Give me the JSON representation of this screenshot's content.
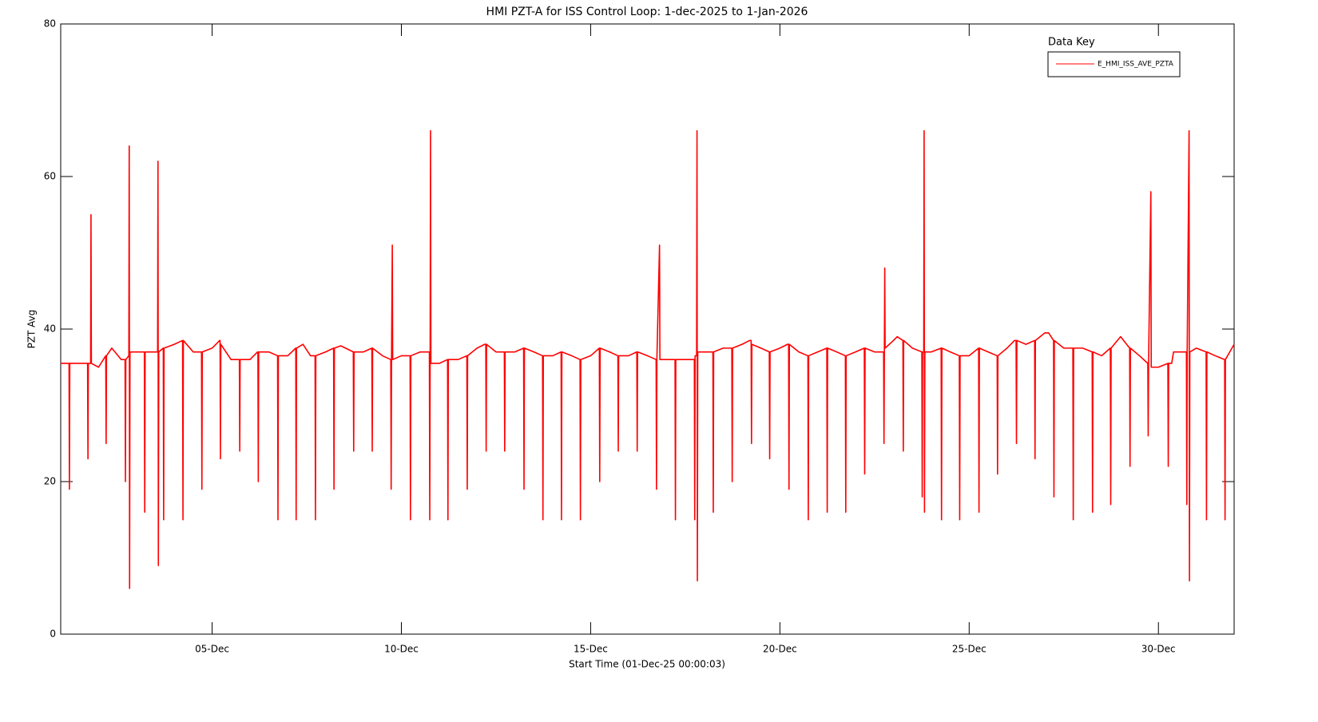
{
  "chart_data": {
    "type": "line",
    "title": "HMI PZT-A for ISS Control Loop: 1-dec-2025 to 1-Jan-2026",
    "xlabel": "Start Time (01-Dec-25 00:00:03)",
    "ylabel": "PZT Avg",
    "legend_title": "Data Key",
    "legend": "top-right",
    "grid": false,
    "xlim": [
      1,
      32
    ],
    "ylim": [
      0,
      80
    ],
    "xticks": [
      {
        "value": 5,
        "label": "05-Dec"
      },
      {
        "value": 10,
        "label": "10-Dec"
      },
      {
        "value": 15,
        "label": "15-Dec"
      },
      {
        "value": 20,
        "label": "20-Dec"
      },
      {
        "value": 25,
        "label": "25-Dec"
      },
      {
        "value": 30,
        "label": "30-Dec"
      }
    ],
    "yticks": [
      0,
      20,
      40,
      60,
      80
    ],
    "series": [
      {
        "name": "E_HMI_ISS_AVE_PZTA",
        "color": "#ff0000",
        "x": [
          1.0,
          1.22,
          1.23,
          1.24,
          1.5,
          1.71,
          1.72,
          1.73,
          1.79,
          1.8,
          1.81,
          2.0,
          2.19,
          2.2,
          2.21,
          2.35,
          2.6,
          2.7,
          2.71,
          2.72,
          2.8,
          2.81,
          2.82,
          2.83,
          3.0,
          3.21,
          3.22,
          3.23,
          3.5,
          3.56,
          3.57,
          3.58,
          3.59,
          3.71,
          3.72,
          3.73,
          4.0,
          4.22,
          4.23,
          4.24,
          4.5,
          4.72,
          4.73,
          4.74,
          5.0,
          5.2,
          5.21,
          5.22,
          5.23,
          5.5,
          5.72,
          5.73,
          5.74,
          6.0,
          6.2,
          6.21,
          6.22,
          6.23,
          6.5,
          6.73,
          6.74,
          6.75,
          7.0,
          7.21,
          7.22,
          7.23,
          7.4,
          7.6,
          7.72,
          7.73,
          7.74,
          8.0,
          8.21,
          8.22,
          8.23,
          8.4,
          8.73,
          8.74,
          8.75,
          9.0,
          9.22,
          9.23,
          9.24,
          9.5,
          9.72,
          9.73,
          9.74,
          9.76,
          9.77,
          10.0,
          10.23,
          10.24,
          10.25,
          10.5,
          10.74,
          10.75,
          10.76,
          10.77,
          10.78,
          11.0,
          11.22,
          11.23,
          11.24,
          11.5,
          11.73,
          11.74,
          11.75,
          12.0,
          12.2,
          12.23,
          12.24,
          12.25,
          12.5,
          12.72,
          12.73,
          12.74,
          13.0,
          13.23,
          13.24,
          13.25,
          13.5,
          13.73,
          13.74,
          13.75,
          14.0,
          14.22,
          14.23,
          14.24,
          14.5,
          14.72,
          14.73,
          14.74,
          15.0,
          15.23,
          15.24,
          15.25,
          15.5,
          15.72,
          15.73,
          15.74,
          16.0,
          16.22,
          16.23,
          16.24,
          16.5,
          16.73,
          16.74,
          16.75,
          16.82,
          16.83,
          17.0,
          17.23,
          17.24,
          17.25,
          17.5,
          17.74,
          17.75,
          17.76,
          17.8,
          17.81,
          17.82,
          17.83,
          18.0,
          18.23,
          18.24,
          18.25,
          18.5,
          18.73,
          18.74,
          18.75,
          19.0,
          19.2,
          19.24,
          19.25,
          19.26,
          19.5,
          19.72,
          19.73,
          19.74,
          20.0,
          20.2,
          20.23,
          20.24,
          20.25,
          20.5,
          20.74,
          20.75,
          20.76,
          21.0,
          21.24,
          21.25,
          21.26,
          21.5,
          21.73,
          21.74,
          21.75,
          22.0,
          22.23,
          22.24,
          22.25,
          22.5,
          22.74,
          22.75,
          22.76,
          22.77,
          22.78,
          23.0,
          23.1,
          23.25,
          23.26,
          23.27,
          23.5,
          23.75,
          23.76,
          23.77,
          23.8,
          23.81,
          23.82,
          23.83,
          24.0,
          24.26,
          24.27,
          24.28,
          24.5,
          24.74,
          24.75,
          24.76,
          25.0,
          25.25,
          25.26,
          25.27,
          25.5,
          25.74,
          25.75,
          25.76,
          26.0,
          26.2,
          26.24,
          26.25,
          26.26,
          26.5,
          26.73,
          26.74,
          26.75,
          27.0,
          27.1,
          27.23,
          27.24,
          27.25,
          27.5,
          27.74,
          27.75,
          27.76,
          28.0,
          28.25,
          28.26,
          28.27,
          28.5,
          28.73,
          28.74,
          28.75,
          29.0,
          29.24,
          29.25,
          29.26,
          29.5,
          29.72,
          29.73,
          29.74,
          29.8,
          29.81,
          30.0,
          30.25,
          30.26,
          30.27,
          30.35,
          30.4,
          30.6,
          30.74,
          30.75,
          30.76,
          30.81,
          30.82,
          30.83,
          31.0,
          31.26,
          31.27,
          31.28,
          31.5,
          31.75,
          31.76,
          31.77,
          32.0
        ],
        "values": [
          35.5,
          35.5,
          19,
          35.5,
          35.5,
          35.5,
          23,
          35.5,
          35.5,
          55,
          35.5,
          35,
          36.5,
          25,
          36.5,
          37.5,
          36,
          36,
          20,
          36,
          36.5,
          64,
          6,
          37,
          37,
          37,
          16,
          37,
          37,
          37,
          62,
          9,
          37,
          37.5,
          15,
          37.5,
          38,
          38.5,
          15,
          38.5,
          37,
          37,
          19,
          37,
          37.5,
          38.5,
          38.5,
          23,
          38,
          36,
          36,
          24,
          36,
          36,
          37,
          37,
          20,
          37,
          37,
          36.5,
          15,
          36.5,
          36.5,
          37.5,
          15,
          37.5,
          38,
          36.5,
          36.5,
          15,
          36.5,
          37,
          37.5,
          19,
          37.5,
          37.8,
          37,
          24,
          37,
          37,
          37.5,
          24,
          37.5,
          36.5,
          36,
          19,
          36,
          51,
          36,
          36.5,
          36.5,
          15,
          36.5,
          37,
          37,
          15,
          37,
          66,
          35.5,
          35.5,
          36,
          15,
          36,
          36,
          36.5,
          19,
          36.5,
          37.5,
          38,
          38,
          24,
          38,
          37,
          37,
          24,
          37,
          37,
          37.5,
          19,
          37.5,
          37,
          36.5,
          15,
          36.5,
          36.5,
          37,
          15,
          37,
          36.5,
          36,
          15,
          36,
          36.5,
          37.5,
          20,
          37.5,
          37,
          36.5,
          24,
          36.5,
          36.5,
          37,
          24,
          37,
          36.5,
          36,
          19,
          36,
          51,
          36,
          36,
          36,
          15,
          36,
          36,
          36,
          15,
          36.5,
          36.5,
          66,
          7,
          37,
          37,
          37,
          16,
          37,
          37.5,
          37.5,
          20,
          37.5,
          38,
          38.5,
          38.5,
          25,
          38,
          37.5,
          37,
          23,
          37,
          37.5,
          38,
          38,
          19,
          38,
          37,
          36.5,
          15,
          36.5,
          37,
          37.5,
          16,
          37.5,
          37,
          36.5,
          16,
          36.5,
          37,
          37.5,
          21,
          37.5,
          37,
          37,
          25,
          37,
          48,
          37.5,
          38.5,
          39,
          38.5,
          24,
          38.5,
          37.5,
          37,
          18,
          37,
          37,
          66,
          16,
          37,
          37,
          37.5,
          15,
          37.5,
          37,
          36.5,
          15,
          36.5,
          36.5,
          37.5,
          16,
          37.5,
          37,
          36.5,
          21,
          36.5,
          37.5,
          38.5,
          38.5,
          25,
          38.5,
          38,
          38.5,
          23,
          38.5,
          39.5,
          39.5,
          38.5,
          18,
          38.5,
          37.5,
          37.5,
          15,
          37.5,
          37.5,
          37,
          16,
          37,
          36.5,
          37.5,
          17,
          37.5,
          39,
          37.5,
          22,
          37.5,
          36.5,
          35.5,
          26,
          35.5,
          58,
          35,
          35,
          35.5,
          22,
          35.5,
          35.5,
          37,
          37,
          37,
          17,
          37,
          66,
          7,
          37,
          37.5,
          37,
          15,
          37,
          36.5,
          36,
          15,
          36,
          38
        ]
      }
    ]
  }
}
